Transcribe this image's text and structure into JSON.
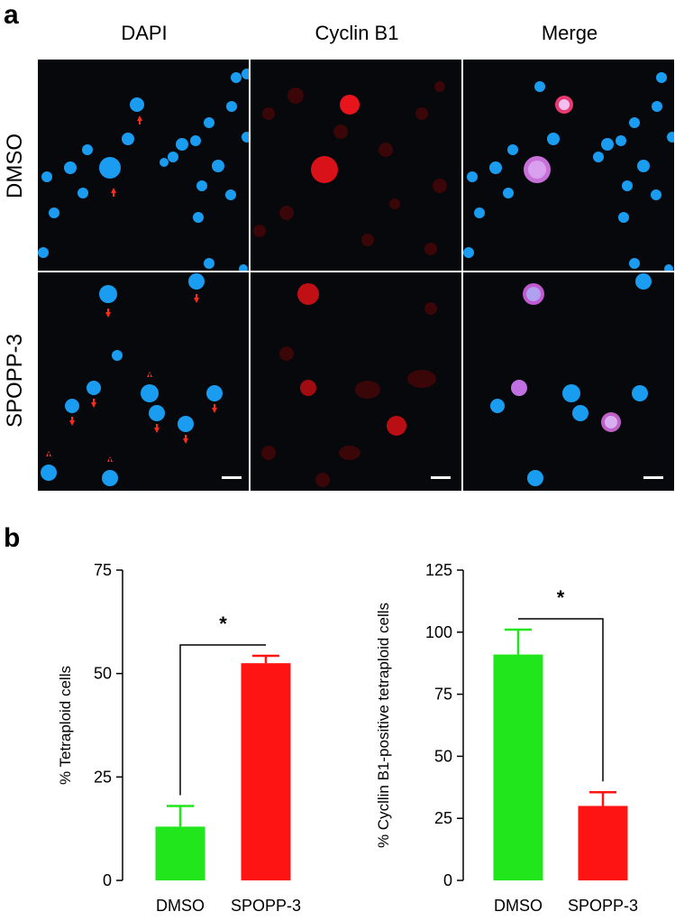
{
  "figure": {
    "panel_a_label": "a",
    "panel_b_label": "b",
    "column_headers": [
      "DAPI",
      "Cyclin B1",
      "Merge"
    ],
    "row_labels": [
      "DMSO",
      "SPOPP-3"
    ],
    "colors": {
      "dapi": "#1a9cf0",
      "cyclin": "#e8141c",
      "arrow": "#ff2a1a",
      "dmso_bar": "#22e61c",
      "spopp_bar": "#ff1414"
    }
  },
  "chart_data": [
    {
      "type": "bar",
      "categories": [
        "DMSO",
        "SPOPP-3"
      ],
      "values": [
        13,
        52.5
      ],
      "error": [
        5,
        1.8
      ],
      "ylabel": "% Tetraploid cells",
      "yticks": [
        0,
        25,
        50,
        75
      ],
      "ylim": [
        0,
        75
      ],
      "significance": "*",
      "colors": [
        "#22e61c",
        "#ff1414"
      ]
    },
    {
      "type": "bar",
      "categories": [
        "DMSO",
        "SPOPP-3"
      ],
      "values": [
        91,
        30
      ],
      "error": [
        10,
        5.5
      ],
      "ylabel": "% Cycllin B1-positive tetraploid cells",
      "yticks": [
        0,
        25,
        50,
        75,
        100,
        125
      ],
      "ylim": [
        0,
        125
      ],
      "significance": "*",
      "colors": [
        "#22e61c",
        "#ff1414"
      ]
    }
  ]
}
